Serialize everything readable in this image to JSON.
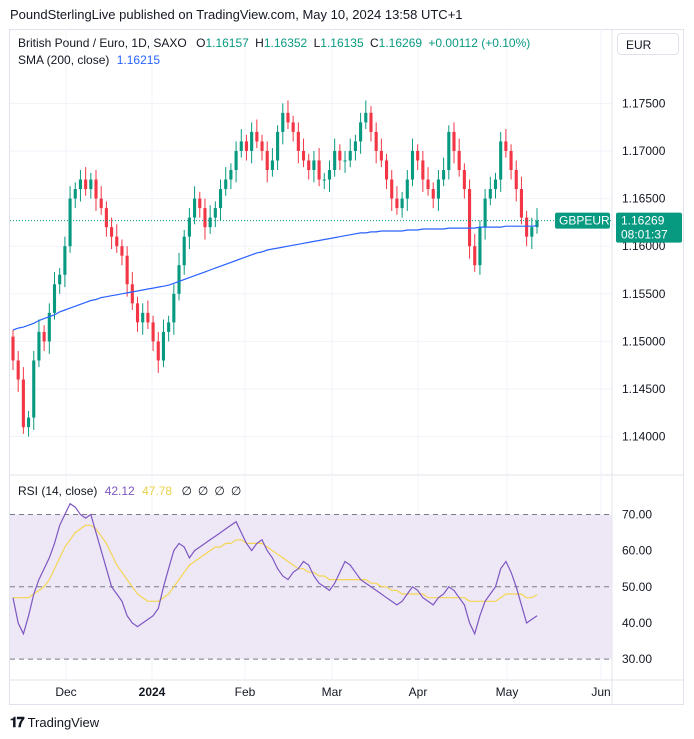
{
  "header": {
    "text": "PoundSterlingLive published on TradingView.com, May 10, 2024 13:58 UTC+1"
  },
  "currency_button": "EUR",
  "legend": {
    "symbol": "British Pound / Euro, 1D, SAXO",
    "o_label": "O",
    "o_value": "1.16157",
    "h_label": "H",
    "h_value": "1.16352",
    "l_label": "L",
    "l_value": "1.16135",
    "c_label": "C",
    "c_value": "1.16269",
    "change": "+0.00112 (+0.10%)",
    "sma_label": "SMA (200, close)",
    "sma_value": "1.16215",
    "rsi_label": "RSI (14, close)",
    "rsi_value": "42.12",
    "rsi_ma_value": "47.78",
    "na_values": [
      "∅",
      "∅",
      "∅",
      "∅"
    ]
  },
  "price_tag": {
    "symbol": "GBPEUR",
    "price": "1.16269",
    "countdown": "08:01:37"
  },
  "footer": {
    "brand": "TradingView"
  },
  "colors": {
    "up": "#089981",
    "down": "#f23645",
    "sma": "#2962ff",
    "rsi": "#7e57c2",
    "rsi_ma": "#f5d653",
    "rsi_band": "#ede7f6"
  },
  "chart_data": [
    {
      "type": "candlestick",
      "symbol": "GBPEUR",
      "title": "British Pound / Euro, 1D, SAXO",
      "ylim": [
        1.1365,
        1.1785
      ],
      "y_ticks": [
        "1.17500",
        "1.17000",
        "1.16500",
        "1.16000",
        "1.15500",
        "1.15000",
        "1.14500",
        "1.14000"
      ],
      "y_tick_values": [
        1.175,
        1.17,
        1.165,
        1.16,
        1.155,
        1.15,
        1.145,
        1.14
      ],
      "x_ticks": [
        "Dec",
        "2024",
        "Feb",
        "Mar",
        "Apr",
        "May",
        "Jun"
      ],
      "last_price": 1.16269,
      "close": [
        1.148,
        1.146,
        1.141,
        1.142,
        1.148,
        1.151,
        1.15,
        1.153,
        1.156,
        1.157,
        1.16,
        1.165,
        1.166,
        1.167,
        1.166,
        1.167,
        1.165,
        1.164,
        1.162,
        1.161,
        1.16,
        1.159,
        1.156,
        1.154,
        1.152,
        1.153,
        1.152,
        1.15,
        1.148,
        1.151,
        1.152,
        1.155,
        1.158,
        1.161,
        1.163,
        1.165,
        1.164,
        1.162,
        1.163,
        1.164,
        1.166,
        1.167,
        1.168,
        1.17,
        1.171,
        1.17,
        1.172,
        1.171,
        1.17,
        1.168,
        1.169,
        1.172,
        1.174,
        1.173,
        1.172,
        1.17,
        1.169,
        1.168,
        1.169,
        1.167,
        1.167,
        1.168,
        1.17,
        1.169,
        1.169,
        1.17,
        1.171,
        1.173,
        1.174,
        1.172,
        1.17,
        1.169,
        1.167,
        1.165,
        1.164,
        1.165,
        1.167,
        1.17,
        1.169,
        1.167,
        1.166,
        1.165,
        1.167,
        1.168,
        1.172,
        1.17,
        1.168,
        1.166,
        1.16,
        1.158,
        1.162,
        1.165,
        1.166,
        1.167,
        1.171,
        1.17,
        1.168,
        1.166,
        1.163,
        1.161,
        1.162,
        1.1627
      ],
      "sma200": [
        1.1512,
        1.1514,
        1.1515,
        1.1517,
        1.1519,
        1.1522,
        1.1524,
        1.1526,
        1.1528,
        1.1531,
        1.1533,
        1.1535,
        1.1537,
        1.1539,
        1.1541,
        1.1543,
        1.1544,
        1.1546,
        1.1547,
        1.1548,
        1.1549,
        1.155,
        1.1551,
        1.1552,
        1.1553,
        1.1554,
        1.1555,
        1.1556,
        1.1557,
        1.1558,
        1.1559,
        1.1561,
        1.1563,
        1.1565,
        1.1567,
        1.1569,
        1.1571,
        1.1573,
        1.1575,
        1.1577,
        1.1579,
        1.1581,
        1.1583,
        1.1585,
        1.1587,
        1.1589,
        1.1591,
        1.1593,
        1.1594,
        1.1596,
        1.1597,
        1.1598,
        1.1599,
        1.16,
        1.1601,
        1.1602,
        1.1603,
        1.1604,
        1.1605,
        1.1606,
        1.1607,
        1.1608,
        1.1609,
        1.161,
        1.1611,
        1.1612,
        1.1613,
        1.1614,
        1.1614,
        1.1615,
        1.1615,
        1.1616,
        1.1616,
        1.1616,
        1.1616,
        1.1616,
        1.1617,
        1.1617,
        1.1617,
        1.1618,
        1.1618,
        1.1618,
        1.1618,
        1.1618,
        1.1619,
        1.1619,
        1.1619,
        1.1619,
        1.1619,
        1.1619,
        1.162,
        1.162,
        1.162,
        1.162,
        1.162,
        1.1621,
        1.1621,
        1.1621,
        1.1621,
        1.1621,
        1.1621,
        1.16215
      ]
    },
    {
      "type": "line",
      "title": "RSI (14, close)",
      "ylim": [
        27,
        74
      ],
      "y_ticks": [
        "70.00",
        "60.00",
        "50.00",
        "40.00",
        "30.00"
      ],
      "y_tick_values": [
        70,
        60,
        50,
        40,
        30
      ],
      "series": [
        {
          "name": "RSI",
          "values": [
            47,
            40,
            37,
            42,
            48,
            52,
            55,
            58,
            62,
            67,
            70,
            73,
            72,
            70,
            69,
            70,
            65,
            60,
            55,
            50,
            48,
            46,
            42,
            40,
            39,
            40,
            41,
            42,
            44,
            50,
            55,
            60,
            62,
            61,
            58,
            60,
            61,
            62,
            63,
            64,
            65,
            66,
            67,
            68,
            65,
            62,
            60,
            62,
            63,
            60,
            58,
            55,
            53,
            52,
            54,
            55,
            57,
            56,
            53,
            51,
            50,
            49,
            51,
            54,
            57,
            56,
            54,
            52,
            51,
            50,
            49,
            48,
            47,
            46,
            45,
            46,
            48,
            50,
            49,
            47,
            46,
            45,
            47,
            48,
            50,
            49,
            47,
            45,
            40,
            37,
            42,
            46,
            48,
            50,
            55,
            57,
            54,
            50,
            45,
            40,
            41,
            42
          ]
        },
        {
          "name": "RSI MA",
          "values": [
            47,
            47,
            47,
            47,
            48,
            49,
            50,
            52,
            55,
            58,
            61,
            63,
            65,
            66,
            67,
            67,
            66,
            64,
            62,
            59,
            56,
            54,
            52,
            50,
            48,
            47,
            46,
            46,
            46,
            47,
            48,
            50,
            52,
            54,
            56,
            57,
            58,
            59,
            60,
            61,
            61,
            62,
            62,
            63,
            63,
            62,
            62,
            62,
            62,
            61,
            60,
            59,
            58,
            57,
            56,
            55,
            55,
            54,
            54,
            53,
            53,
            52,
            52,
            52,
            52,
            52,
            52,
            52,
            52,
            51,
            51,
            50,
            50,
            49,
            49,
            48,
            48,
            48,
            48,
            48,
            47,
            47,
            47,
            47,
            47,
            47,
            47,
            47,
            46,
            46,
            46,
            46,
            46,
            46,
            47,
            48,
            48,
            48,
            48,
            47,
            47,
            47.78
          ]
        }
      ],
      "band": [
        30,
        70
      ],
      "midline": 50
    }
  ]
}
